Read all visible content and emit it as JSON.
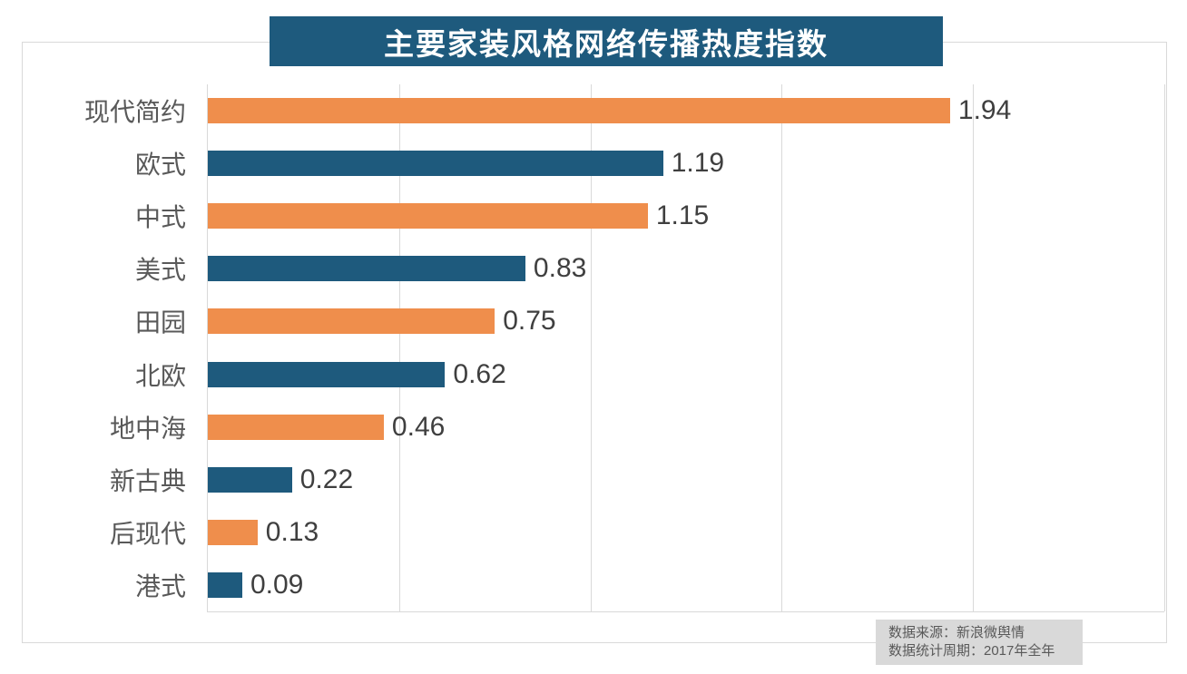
{
  "title": "主要家装风格网络传播热度指数",
  "source_box": {
    "line1": "数据来源：新浪微舆情",
    "line2": "数据统计周期：2017年全年"
  },
  "colors": {
    "title_bg": "#1e5a7d",
    "bar_orange": "#ef8e4c",
    "bar_blue": "#1e5a7d",
    "grid": "#d9d9d9",
    "category_text": "#595959",
    "value_text": "#3f3f3f",
    "source_bg": "#d9d9d9",
    "source_text": "#595959"
  },
  "chart_data": {
    "type": "bar",
    "orientation": "horizontal",
    "title": "主要家装风格网络传播热度指数",
    "categories": [
      "现代简约",
      "欧式",
      "中式",
      "美式",
      "田园",
      "北欧",
      "地中海",
      "新古典",
      "后现代",
      "港式"
    ],
    "values": [
      1.94,
      1.19,
      1.15,
      0.83,
      0.75,
      0.62,
      0.46,
      0.22,
      0.13,
      0.09
    ],
    "value_labels": [
      "1.94",
      "1.19",
      "1.15",
      "0.83",
      "0.75",
      "0.62",
      "0.46",
      "0.22",
      "0.13",
      "0.09"
    ],
    "series_colors_alternating": [
      "#ef8e4c",
      "#1e5a7d"
    ],
    "xlabel": "",
    "ylabel": "",
    "xlim": [
      0,
      2.5
    ],
    "gridline_step": 0.5,
    "grid": true,
    "legend": "none",
    "tick_labels_shown": false,
    "annotations": [
      "数据来源：新浪微舆情",
      "数据统计周期：2017年全年"
    ]
  }
}
